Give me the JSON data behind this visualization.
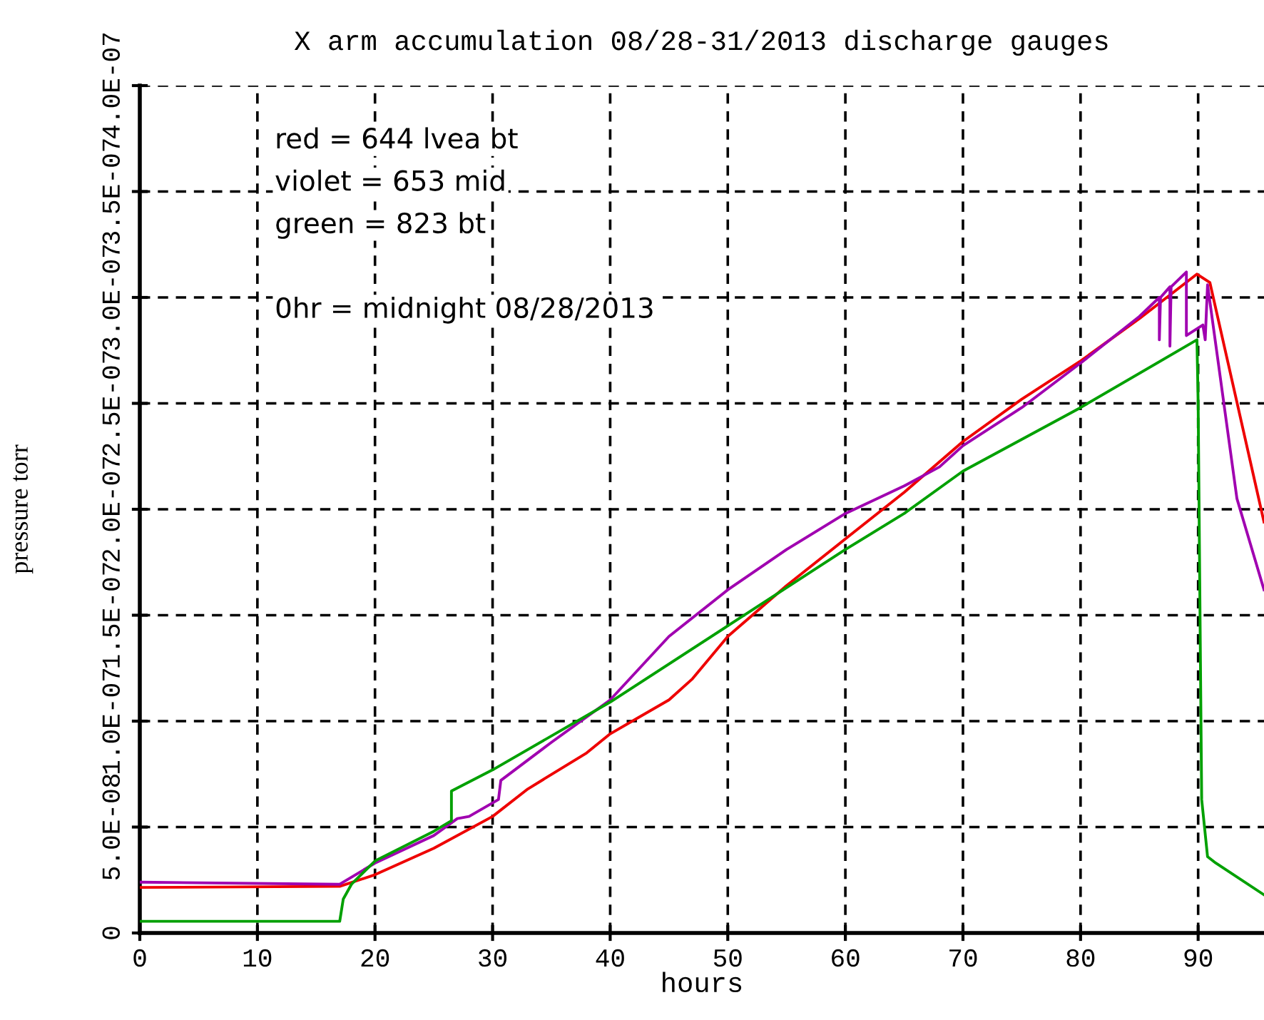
{
  "chart_data": {
    "type": "line",
    "title": "X arm accumulation 08/28-31/2013 discharge gauges",
    "xlabel": "hours",
    "ylabel": "pressure torr",
    "xlim": [
      0,
      95.6
    ],
    "xticks": [
      0,
      10,
      20,
      30,
      40,
      50,
      60,
      70,
      80,
      90
    ],
    "ylim": [
      0,
      4e-07
    ],
    "yticks": [
      0,
      {
        "value": 5e-08,
        "label": "5.0E-08"
      },
      {
        "value": 1e-07,
        "label": "1.0E-07"
      },
      {
        "value": 1.5e-07,
        "label": "1.5E-07"
      },
      {
        "value": 2e-07,
        "label": "2.0E-07"
      },
      {
        "value": 2.5e-07,
        "label": "2.5E-07"
      },
      {
        "value": 3e-07,
        "label": "3.0E-07"
      },
      {
        "value": 3.5e-07,
        "label": "3.5E-07"
      },
      {
        "value": 4e-07,
        "label": "4.0E-07"
      }
    ],
    "grid": true,
    "legend": false,
    "marker": "none",
    "line_style": "solid",
    "annotations": [
      "red = 644 lvea bt",
      "violet = 653 mid",
      "green = 823 bt",
      "0hr = midnight 08/28/2013"
    ],
    "series": [
      {
        "color": "#ee0000",
        "x": [
          0,
          17,
          20,
          25,
          30,
          33,
          38,
          40,
          45,
          47,
          50,
          55,
          60,
          65,
          70,
          75,
          80,
          85,
          89.9,
          91,
          95.6
        ],
        "values": [
          2.15e-08,
          2.2e-08,
          2.75e-08,
          4e-08,
          5.5e-08,
          6.8e-08,
          8.5e-08,
          9.4e-08,
          1.1e-07,
          1.2e-07,
          1.4e-07,
          1.64e-07,
          1.86e-07,
          2.08e-07,
          2.32e-07,
          2.52e-07,
          2.7e-07,
          2.9e-07,
          3.11e-07,
          3.07e-07,
          1.94e-07
        ]
      },
      {
        "color": "#a000b0",
        "x": [
          0,
          17,
          20,
          25,
          27,
          28,
          30.5,
          30.7,
          35,
          40,
          45,
          50,
          55,
          60,
          65,
          68,
          70,
          75,
          80,
          85,
          86.7,
          86.7,
          86.8,
          87.6,
          87.6,
          87.7,
          89,
          89,
          90.4,
          90.6,
          90.8,
          93.3,
          95.6
        ],
        "values": [
          2.4e-08,
          2.3e-08,
          3.3e-08,
          4.6e-08,
          5.4e-08,
          5.5e-08,
          6.3e-08,
          7.2e-08,
          9e-08,
          1.1e-07,
          1.4e-07,
          1.62e-07,
          1.81e-07,
          1.98e-07,
          2.11e-07,
          2.2e-07,
          2.3e-07,
          2.48e-07,
          2.69e-07,
          2.91e-07,
          3e-07,
          2.8e-07,
          3e-07,
          3.05e-07,
          2.77e-07,
          3.05e-07,
          3.12e-07,
          2.82e-07,
          2.87e-07,
          2.8e-07,
          3.06e-07,
          2.05e-07,
          1.62e-07
        ]
      },
      {
        "color": "#00a000",
        "x": [
          0,
          17,
          17.3,
          18,
          20,
          25,
          26.5,
          26.5,
          30,
          40,
          50,
          60,
          65,
          70,
          80,
          89.9,
          90,
          90.3,
          90.8,
          91.5,
          95.6
        ],
        "values": [
          5.5e-09,
          5.5e-09,
          1.6e-08,
          2.3e-08,
          3.4e-08,
          4.8e-08,
          5.3e-08,
          6.7e-08,
          7.7e-08,
          1.09e-07,
          1.45e-07,
          1.81e-07,
          1.98e-07,
          2.18e-07,
          2.48e-07,
          2.8e-07,
          2.5e-07,
          6.3e-08,
          3.6e-08,
          3.3e-08,
          1.8e-08
        ]
      }
    ]
  }
}
